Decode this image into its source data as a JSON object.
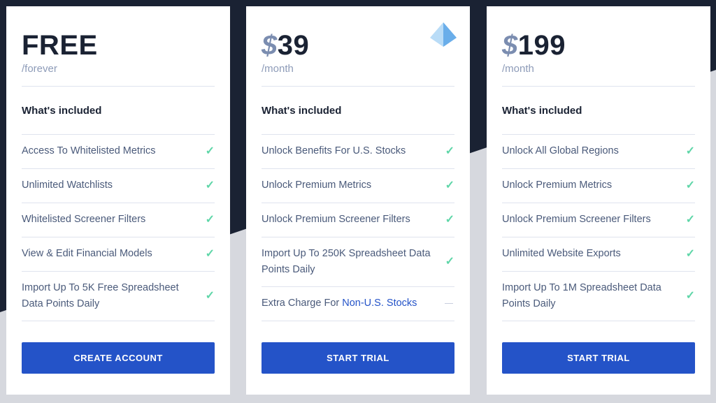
{
  "plans": [
    {
      "currency": "",
      "price": "FREE",
      "period": "/forever",
      "included_label": "What's included",
      "features": [
        "Access To Whitelisted Metrics",
        "Unlimited Watchlists",
        "Whitelisted Screener Filters",
        "View & Edit Financial Models",
        "Import Up To 5K Free Spreadsheet Data Points Daily"
      ],
      "button": "CREATE ACCOUNT"
    },
    {
      "currency": "$",
      "price": "39",
      "period": "/month",
      "included_label": "What's included",
      "features": [
        "Unlock Benefits For U.S. Stocks",
        "Unlock Premium Metrics",
        "Unlock Premium Screener Filters",
        "Import Up To 250K Spreadsheet Data Points Daily"
      ],
      "extra": {
        "prefix": "Extra Charge For ",
        "link": "Non-U.S. Stocks"
      },
      "button": "START TRIAL",
      "icon": "pyramid-icon"
    },
    {
      "currency": "$",
      "price": "199",
      "period": "/month",
      "included_label": "What's included",
      "features": [
        "Unlock All Global Regions",
        "Unlock Premium Metrics",
        "Unlock Premium Screener Filters",
        "Unlimited Website Exports",
        "Import Up To 1M Spreadsheet Data Points Daily"
      ],
      "button": "START TRIAL"
    }
  ],
  "colors": {
    "accent": "#2453c8",
    "check": "#5fd6a8",
    "dark_bg": "#1a2233"
  }
}
